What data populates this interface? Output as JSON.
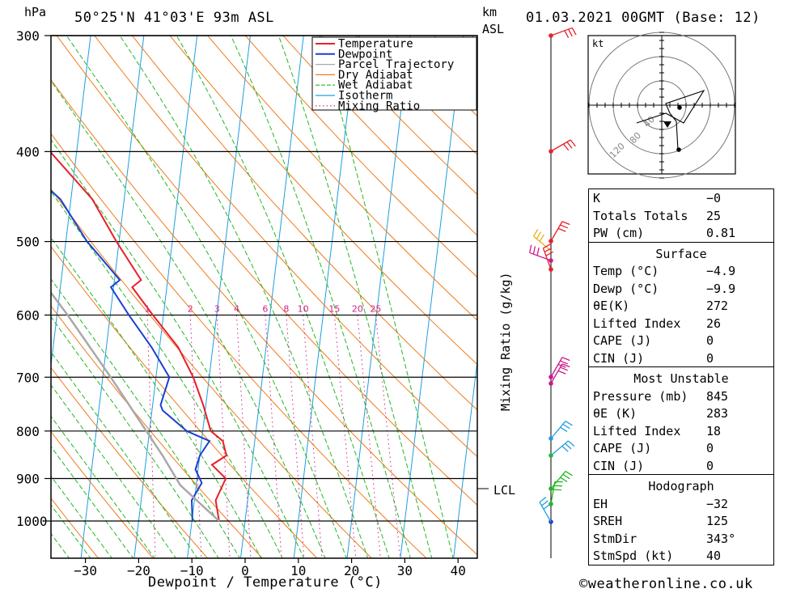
{
  "header": {
    "pressure_unit": "hPa",
    "location": "50°25'N  41°03'E  93m  ASL",
    "height_unit_km": "km",
    "height_unit_asl": "ASL",
    "datetime": "01.03.2021  00GMT  (Base: 12)"
  },
  "footer": {
    "xlabel": "Dewpoint / Temperature (°C)",
    "mixing_ratio_label": "Mixing Ratio (g/kg)",
    "lcl_label": "LCL",
    "copyright": "©weatheronline.co.uk"
  },
  "colors": {
    "temperature": "#e8202a",
    "dewpoint": "#1c3fd0",
    "parcel": "#a9a9a9",
    "dry_adiabat": "#f07a1a",
    "wet_adiabat": "#22b822",
    "isotherm": "#1e9ee0",
    "mixing_ratio": "#d0208a"
  },
  "chart_data": {
    "type": "line",
    "title": "50°25'N 41°03'E 93m ASL — 01.03.2021 00GMT (Base: 12)",
    "xlabel": "Dewpoint / Temperature (°C)",
    "ylabel": "hPa",
    "y_scale": "log-pressure (skew-T)",
    "xlim": [
      -35,
      40
    ],
    "ylim": [
      1000,
      300
    ],
    "x_ticks": [
      "−30",
      "−20",
      "−10",
      "0",
      "10",
      "20",
      "30",
      "40"
    ],
    "y_ticks": [
      "300",
      "400",
      "500",
      "600",
      "700",
      "800",
      "900",
      "1000"
    ],
    "legend": [
      "Temperature",
      "Dewpoint",
      "Parcel Trajectory",
      "Dry Adiabat",
      "Wet Adiabat",
      "Isotherm",
      "Mixing Ratio"
    ],
    "legend_position": "top-right",
    "mixing_ratio_labels": [
      "1",
      "2",
      "3",
      "4",
      "6",
      "8",
      "10",
      "15",
      "20",
      "25"
    ],
    "series": [
      {
        "name": "Temperature",
        "points": [
          [
            1000,
            -4.9
          ],
          [
            950,
            -6
          ],
          [
            900,
            -4.6
          ],
          [
            870,
            -7.5
          ],
          [
            850,
            -5.0
          ],
          [
            820,
            -6.0
          ],
          [
            800,
            -8.5
          ],
          [
            750,
            -10.5
          ],
          [
            700,
            -13.0
          ],
          [
            650,
            -16.5
          ],
          [
            600,
            -22.0
          ],
          [
            560,
            -26.5
          ],
          [
            550,
            -25.0
          ],
          [
            500,
            -30.5
          ],
          [
            450,
            -36.0
          ],
          [
            400,
            -45.0
          ],
          [
            350,
            -48.5
          ],
          [
            300,
            -55.5
          ]
        ]
      },
      {
        "name": "Dewpoint",
        "points": [
          [
            1000,
            -9.9
          ],
          [
            950,
            -10.5
          ],
          [
            910,
            -9.0
          ],
          [
            880,
            -10.5
          ],
          [
            850,
            -10.0
          ],
          [
            820,
            -8.5
          ],
          [
            800,
            -13.0
          ],
          [
            760,
            -18.0
          ],
          [
            750,
            -18.5
          ],
          [
            700,
            -17.5
          ],
          [
            650,
            -21.5
          ],
          [
            600,
            -26.5
          ],
          [
            560,
            -30.5
          ],
          [
            550,
            -29.0
          ],
          [
            500,
            -36.0
          ],
          [
            450,
            -42.0
          ],
          [
            400,
            -53.0
          ],
          [
            350,
            -58.0
          ],
          [
            300,
            -70.0
          ]
        ]
      },
      {
        "name": "Parcel Trajectory",
        "points": [
          [
            1000,
            -4.9
          ],
          [
            915,
            -13.0
          ],
          [
            850,
            -17.0
          ],
          [
            700,
            -28.5
          ],
          [
            600,
            -38.0
          ],
          [
            500,
            -50.0
          ],
          [
            400,
            -66.0
          ],
          [
            300,
            -84.0
          ]
        ]
      }
    ],
    "wind_profile_heights_km": [
      "300",
      "400",
      "500",
      "600",
      "700",
      "800",
      "900",
      "1000"
    ],
    "hodograph": {
      "unit": "kt",
      "ring_labels": [
        "40",
        "80",
        "120"
      ]
    }
  },
  "indices": {
    "k_label": "K",
    "k_value": "−0",
    "tt_label": "Totals Totals",
    "tt_value": "25",
    "pw_label": "PW (cm)",
    "pw_value": "0.81"
  },
  "surface": {
    "title": "Surface",
    "temp_label": "Temp (°C)",
    "temp_value": "−4.9",
    "dewp_label": "Dewp (°C)",
    "dewp_value": "−9.9",
    "theta_label": "θE(K)",
    "theta_value": "272",
    "li_label": "Lifted Index",
    "li_value": "26",
    "cape_label": "CAPE (J)",
    "cape_value": "0",
    "cin_label": "CIN (J)",
    "cin_value": "0"
  },
  "most_unstable": {
    "title": "Most Unstable",
    "pressure_label": "Pressure (mb)",
    "pressure_value": "845",
    "theta_label": "θE (K)",
    "theta_value": "283",
    "li_label": "Lifted Index",
    "li_value": "18",
    "cape_label": "CAPE (J)",
    "cape_value": "0",
    "cin_label": "CIN (J)",
    "cin_value": "0"
  },
  "hodograph_table": {
    "title": "Hodograph",
    "eh_label": "EH",
    "eh_value": "−32",
    "sreh_label": "SREH",
    "sreh_value": "125",
    "stmdir_label": "StmDir",
    "stmdir_value": "343°",
    "stmspd_label": "StmSpd (kt)",
    "stmspd_value": "40"
  }
}
